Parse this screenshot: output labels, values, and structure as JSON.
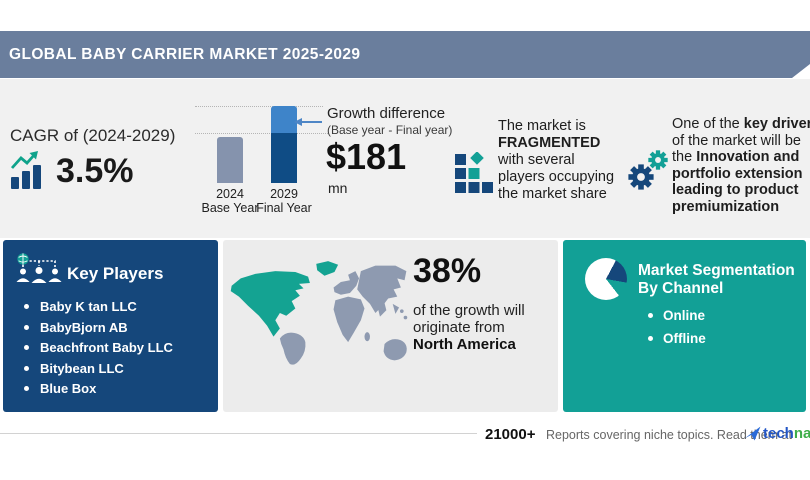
{
  "header": {
    "title": "GLOBAL BABY CARRIER MARKET 2025-2029"
  },
  "cagr": {
    "label": "CAGR of (2024-2029)",
    "value": "3.5%"
  },
  "growth": {
    "annotation_title": "Growth difference",
    "annotation_sub": "(Base year - Final year)",
    "amount": "$181",
    "unit": "mn",
    "bar1_year": "2024",
    "bar1_role": "Base Year",
    "bar2_year": "2029",
    "bar2_role": "Final Year"
  },
  "chart_data": {
    "type": "bar",
    "title": "Growth difference (Base year - Final year)",
    "categories": [
      "2024 Base Year",
      "2029 Final Year"
    ],
    "series": [
      {
        "name": "base-level-segment-px",
        "values": [
          46,
          50
        ]
      },
      {
        "name": "growth-difference-segment-px",
        "values": [
          0,
          27
        ]
      }
    ],
    "annotations": {
      "growth_difference": "$181 mn",
      "cagr": "3.5% (2024-2029)",
      "growth_from_north_america": "38%"
    },
    "legend_position": "none",
    "grid": "dotted reference lines at bar tops"
  },
  "fragmented": {
    "l1": "The market is",
    "l2": "FRAGMENTED",
    "l3": "with several",
    "l4": "players occupying",
    "l5": "the market share"
  },
  "key_drivers": {
    "prefix": "One of the ",
    "bold1": "key drivers",
    "mid": " of the market will be the ",
    "bold2": "Innovation and portfolio extension leading to product premiumization"
  },
  "key_players": {
    "title": "Key Players",
    "items": [
      "Baby K tan LLC",
      "BabyBjorn AB",
      "Beachfront Baby LLC",
      "Bitybean LLC",
      "Blue Box"
    ]
  },
  "map": {
    "percent": "38%",
    "line": "of the growth will originate from",
    "region": "North America"
  },
  "segmentation": {
    "title": "Market Segmentation By Channel",
    "items": [
      "Online",
      "Offline"
    ]
  },
  "footer": {
    "count": "21000+",
    "text": "Reports covering niche topics. Read them at",
    "brand_part1": "tech",
    "brand_part2": "navio"
  },
  "colors": {
    "header_bar": "#6A7E9D",
    "navy": "#15477B",
    "teal": "#12A096",
    "bar_gray": "#8593AD",
    "bar_light_blue": "#3E84C9",
    "bar_dark_blue": "#0F4C85",
    "map_gray": "#8E9AB0",
    "map_highlight": "#14A392",
    "brand_blue": "#2356C5",
    "brand_green": "#3FAE49"
  },
  "icons": {
    "cagr-growth-icon": "navy bar chart with teal rising zigzag arrow",
    "fragmented-squares-icon": "grid of navy squares with one teal square and teal diamond",
    "gears-icon": "navy gear with smaller teal gear",
    "key-players-org-icon": "white dashed org bracket, three people, teal globe",
    "pie-chart-icon": "white pie with navy slice and notch",
    "world-map": "world silhouette, North America highlighted teal",
    "technavio-arrow-icon": "blue paper-plane swoosh"
  }
}
